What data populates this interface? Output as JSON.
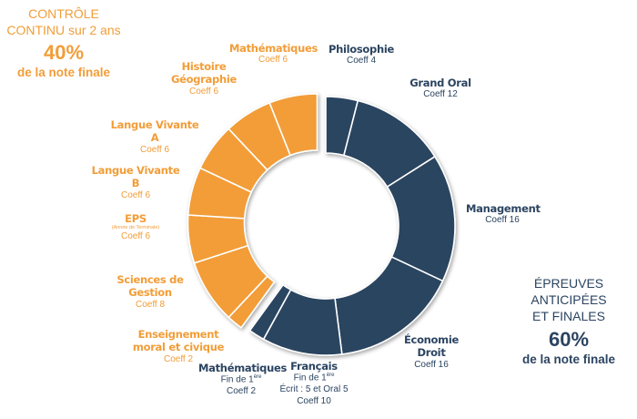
{
  "chart_data": {
    "type": "pie",
    "variant": "donut",
    "groups": [
      {
        "name": "Épreuves anticipées et finales",
        "color": "#2b4461",
        "share_percent": 60,
        "exploded": false,
        "slices": [
          {
            "label": "Philosophie",
            "coeff": 4
          },
          {
            "label": "Grand Oral",
            "coeff": 12
          },
          {
            "label": "Management",
            "coeff": 16
          },
          {
            "label": "Économie Droit",
            "coeff": 16
          },
          {
            "label": "Français",
            "coeff": 10
          },
          {
            "label": "Mathématiques",
            "coeff": 2
          }
        ]
      },
      {
        "name": "Contrôle continu",
        "color": "#f29d38",
        "share_percent": 40,
        "exploded": true,
        "slices": [
          {
            "label": "Enseignement moral et civique",
            "coeff": 2
          },
          {
            "label": "Sciences de Gestion",
            "coeff": 8
          },
          {
            "label": "EPS",
            "coeff": 6
          },
          {
            "label": "Langue Vivante B",
            "coeff": 6
          },
          {
            "label": "Langue Vivante A",
            "coeff": 6
          },
          {
            "label": "Histoire Géographie",
            "coeff": 6
          },
          {
            "label": "Mathématiques",
            "coeff": 6
          }
        ]
      }
    ],
    "total": 100,
    "start": "top",
    "direction": "clockwise"
  },
  "labels": {
    "philo": {
      "title": "Philosophie",
      "coeff": "Coeff 4"
    },
    "grandoral": {
      "title": "Grand Oral",
      "coeff": "Coeff 12"
    },
    "management": {
      "title": "Management",
      "coeff": "Coeff 16"
    },
    "eco": {
      "title1": "Économie",
      "title2": "Droit",
      "coeff": "Coeff 16"
    },
    "francais": {
      "title": "Français",
      "note1": "Fin de 1",
      "sup": "ère",
      "note2": "Écrit : 5 et Oral 5",
      "coeff": "Coeff 10"
    },
    "maths_final": {
      "title": "Mathématiques",
      "note1": "Fin de 1",
      "sup": "ère",
      "coeff": "Coeff 2"
    },
    "emc": {
      "title1": "Enseignement",
      "title2": "moral et civique",
      "coeff": "Coeff 2"
    },
    "sdg": {
      "title1": "Sciences de",
      "title2": "Gestion",
      "coeff": "Coeff 8"
    },
    "eps": {
      "title": "EPS",
      "note": "(Année de Terminale)",
      "coeff": "Coeff 6"
    },
    "lvb": {
      "title": "Langue Vivante B",
      "coeff": "Coeff 6"
    },
    "lva": {
      "title": "Langue Vivante A",
      "coeff": "Coeff 6"
    },
    "hg": {
      "title1": "Histoire",
      "title2": "Géographie",
      "coeff": "Coeff 6"
    },
    "maths_cc": {
      "title": "Mathématiques",
      "coeff": "Coeff 6"
    }
  },
  "summary_left": {
    "line1": "CONTRÔLE",
    "line2": "CONTINU sur 2 ans",
    "percent": "40%",
    "footer": "de la note finale"
  },
  "summary_right": {
    "line1": "ÉPREUVES",
    "line2": "ANTICIPÉES",
    "line3": "ET FINALES",
    "percent": "60%",
    "footer": "de la note finale"
  }
}
